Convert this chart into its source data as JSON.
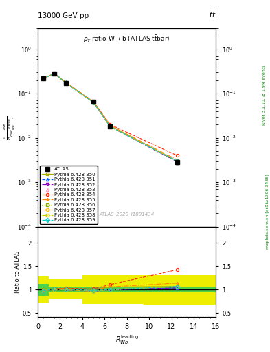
{
  "title_top": "13000 GeV pp",
  "title_right": "tt̅",
  "plot_title": "p_{T} ratio W → b (ATLAS t̅bar)",
  "watermark": "ATLAS_2020_I1801434",
  "rivet_label": "Rivet 3.1.10, ≥ 1.9M events",
  "mcplots_label": "mcplots.cern.ch [arXiv:1306.3436]",
  "xlabel": "R_{Wb}^{leading}",
  "xlim": [
    0,
    16
  ],
  "ylim_main": [
    0.0001,
    3
  ],
  "ylim_ratio": [
    0.42,
    2.35
  ],
  "x_data": [
    0.5,
    1.5,
    2.5,
    5.0,
    6.5,
    12.5
  ],
  "atlas_y": [
    0.22,
    0.28,
    0.175,
    0.065,
    0.018,
    0.0028
  ],
  "atlas_yerr": [
    0.012,
    0.012,
    0.009,
    0.003,
    0.0012,
    0.0003
  ],
  "pythia_350_y": [
    0.222,
    0.287,
    0.18,
    0.065,
    0.019,
    0.003
  ],
  "pythia_351_y": [
    0.22,
    0.284,
    0.175,
    0.063,
    0.018,
    0.0029
  ],
  "pythia_352_y": [
    0.22,
    0.283,
    0.175,
    0.063,
    0.018,
    0.0029
  ],
  "pythia_353_y": [
    0.22,
    0.283,
    0.175,
    0.063,
    0.018,
    0.003
  ],
  "pythia_354_y": [
    0.221,
    0.285,
    0.18,
    0.066,
    0.02,
    0.004
  ],
  "pythia_355_y": [
    0.221,
    0.285,
    0.178,
    0.065,
    0.019,
    0.0032
  ],
  "pythia_356_y": [
    0.22,
    0.283,
    0.175,
    0.063,
    0.018,
    0.003
  ],
  "pythia_357_y": [
    0.22,
    0.283,
    0.176,
    0.064,
    0.018,
    0.003
  ],
  "pythia_358_y": [
    0.22,
    0.283,
    0.175,
    0.063,
    0.018,
    0.003
  ],
  "pythia_359_y": [
    0.22,
    0.284,
    0.176,
    0.064,
    0.018,
    0.003
  ],
  "ratio_350": [
    1.0,
    1.025,
    1.03,
    1.0,
    1.055,
    1.07
  ],
  "ratio_351": [
    0.98,
    1.01,
    1.0,
    0.97,
    1.0,
    1.035
  ],
  "ratio_352": [
    0.98,
    1.01,
    1.0,
    0.97,
    1.0,
    1.035
  ],
  "ratio_353": [
    0.98,
    1.01,
    1.0,
    0.97,
    1.0,
    1.07
  ],
  "ratio_354": [
    0.98,
    1.02,
    1.03,
    1.015,
    1.11,
    1.43
  ],
  "ratio_355": [
    0.99,
    1.02,
    1.02,
    1.0,
    1.06,
    1.14
  ],
  "ratio_356": [
    0.98,
    1.01,
    1.0,
    0.97,
    1.0,
    1.07
  ],
  "ratio_357": [
    0.98,
    1.01,
    1.01,
    0.985,
    1.0,
    1.07
  ],
  "ratio_358": [
    0.98,
    1.01,
    1.0,
    0.97,
    1.0,
    1.07
  ],
  "ratio_359": [
    0.98,
    1.015,
    1.01,
    0.985,
    1.0,
    1.07
  ],
  "x_band_edges": [
    0.0,
    1.0,
    2.0,
    4.0,
    5.5,
    9.5,
    16.0
  ],
  "green_lo": [
    0.88,
    0.95,
    0.95,
    0.95,
    0.95,
    0.94
  ],
  "green_hi": [
    1.12,
    1.07,
    1.07,
    1.07,
    1.07,
    1.06
  ],
  "yellow_lo": [
    0.72,
    0.8,
    0.8,
    0.7,
    0.7,
    0.68
  ],
  "yellow_hi": [
    1.28,
    1.22,
    1.22,
    1.32,
    1.32,
    1.32
  ],
  "green_color": "#33cc55",
  "yellow_color": "#eeee00",
  "colors": {
    "350": "#aaaa00",
    "351": "#0055ff",
    "352": "#8800bb",
    "353": "#ff99bb",
    "354": "#ff2200",
    "355": "#ff8800",
    "356": "#88aa00",
    "357": "#ffbb00",
    "358": "#cccc00",
    "359": "#00cccc"
  },
  "markers": {
    "350": "s",
    "351": "^",
    "352": "v",
    "353": "^",
    "354": "o",
    "355": "*",
    "356": "s",
    "357": "D",
    "358": "s",
    "359": "D"
  },
  "linestyles": {
    "350": "-",
    "351": "--",
    "352": "-.",
    "353": ":",
    "354": "--",
    "355": "-.",
    "356": ":",
    "357": "--",
    "358": "-.",
    "359": "--"
  }
}
